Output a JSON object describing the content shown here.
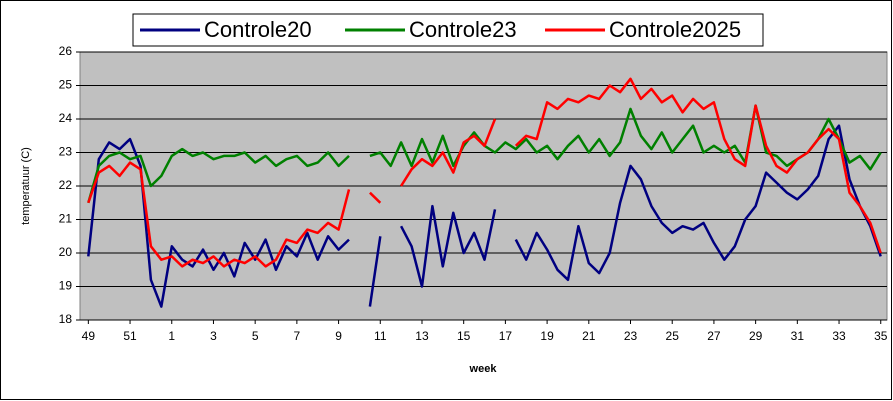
{
  "chart_data": {
    "type": "line",
    "x_label": "week",
    "y_label": "temperatuur (C)",
    "x": [
      0,
      0.5,
      1,
      1.5,
      2,
      2.5,
      3,
      3.5,
      4,
      4.5,
      5,
      5.5,
      6,
      6.5,
      7,
      7.5,
      8,
      8.5,
      9,
      9.5,
      10,
      10.5,
      11,
      11.5,
      12,
      12.5,
      13,
      13.5,
      14,
      14.5,
      15,
      15.5,
      16,
      16.5,
      17,
      17.5,
      18,
      18.5,
      19,
      19.5,
      20,
      20.5,
      21,
      21.5,
      22,
      22.5,
      23,
      23.5,
      24,
      24.5,
      25,
      25.5,
      26,
      26.5,
      27,
      27.5,
      28,
      28.5,
      29,
      29.5,
      30,
      30.5,
      31,
      31.5,
      32,
      32.5,
      33,
      33.5,
      34,
      34.5,
      35,
      35.5,
      36,
      36.5,
      37,
      37.5,
      38
    ],
    "series": [
      {
        "name": "Controle20",
        "color": "#000080",
        "values": [
          19.9,
          22.8,
          23.3,
          23.1,
          23.4,
          22.6,
          19.2,
          18.4,
          20.2,
          19.8,
          19.6,
          20.1,
          19.5,
          20.0,
          19.3,
          20.3,
          19.8,
          20.4,
          19.5,
          20.2,
          19.9,
          20.6,
          19.8,
          20.5,
          20.1,
          20.4,
          null,
          18.4,
          20.5,
          null,
          20.8,
          20.2,
          19.0,
          21.4,
          19.6,
          21.2,
          20.0,
          20.6,
          19.8,
          21.3,
          null,
          20.4,
          19.8,
          20.6,
          20.1,
          19.5,
          19.2,
          20.8,
          19.7,
          19.4,
          20.0,
          21.5,
          22.6,
          22.2,
          21.4,
          20.9,
          20.6,
          20.8,
          20.7,
          20.9,
          20.3,
          19.8,
          20.2,
          21.0,
          21.4,
          22.4,
          22.1,
          21.8,
          21.6,
          21.9,
          22.3,
          23.4,
          23.8,
          22.2,
          21.4,
          20.8,
          19.9
        ]
      },
      {
        "name": "Controle23",
        "color": "#008000",
        "values": [
          21.5,
          22.6,
          22.9,
          23.0,
          22.8,
          22.9,
          22.0,
          22.3,
          22.9,
          23.1,
          22.9,
          23.0,
          22.8,
          22.9,
          22.9,
          23.0,
          22.7,
          22.9,
          22.6,
          22.8,
          22.9,
          22.6,
          22.7,
          23.0,
          22.6,
          22.9,
          null,
          22.9,
          23.0,
          22.6,
          23.3,
          22.6,
          23.4,
          22.7,
          23.5,
          22.6,
          23.2,
          23.6,
          23.2,
          23.0,
          23.3,
          23.1,
          23.4,
          23.0,
          23.2,
          22.8,
          23.2,
          23.5,
          23.0,
          23.4,
          22.9,
          23.3,
          24.3,
          23.5,
          23.1,
          23.6,
          23.0,
          23.4,
          23.8,
          23.0,
          23.2,
          23.0,
          23.2,
          22.7,
          24.4,
          23.0,
          22.9,
          22.6,
          22.8,
          23.0,
          23.4,
          24.0,
          23.4,
          22.7,
          22.9,
          22.5,
          23.0
        ]
      },
      {
        "name": "Controle2025",
        "color": "#ff0000",
        "values": [
          21.5,
          22.4,
          22.6,
          22.3,
          22.7,
          22.5,
          20.2,
          19.8,
          19.9,
          19.6,
          19.8,
          19.7,
          19.9,
          19.6,
          19.8,
          19.7,
          19.9,
          19.6,
          19.8,
          20.4,
          20.3,
          20.7,
          20.6,
          20.9,
          20.7,
          21.9,
          null,
          21.8,
          21.5,
          null,
          22.0,
          22.5,
          22.8,
          22.6,
          23.0,
          22.4,
          23.3,
          23.5,
          23.2,
          24.0,
          null,
          23.2,
          23.5,
          23.4,
          24.5,
          24.3,
          24.6,
          24.5,
          24.7,
          24.6,
          25.0,
          24.8,
          25.2,
          24.6,
          24.9,
          24.5,
          24.7,
          24.2,
          24.6,
          24.3,
          24.5,
          23.4,
          22.8,
          22.6,
          24.4,
          23.2,
          22.6,
          22.4,
          22.8,
          23.0,
          23.4,
          23.7,
          23.4,
          21.8,
          21.4,
          20.9,
          20.0
        ]
      }
    ],
    "xlim": [
      -0.4,
      38.3
    ],
    "xticks": [
      {
        "value": 0,
        "label": "49"
      },
      {
        "value": 2,
        "label": "51"
      },
      {
        "value": 4,
        "label": "1"
      },
      {
        "value": 6,
        "label": "3"
      },
      {
        "value": 8,
        "label": "5"
      },
      {
        "value": 10,
        "label": "7"
      },
      {
        "value": 12,
        "label": "9"
      },
      {
        "value": 14,
        "label": "11"
      },
      {
        "value": 16,
        "label": "13"
      },
      {
        "value": 18,
        "label": "15"
      },
      {
        "value": 20,
        "label": "17"
      },
      {
        "value": 22,
        "label": "19"
      },
      {
        "value": 24,
        "label": "21"
      },
      {
        "value": 26,
        "label": "23"
      },
      {
        "value": 28,
        "label": "25"
      },
      {
        "value": 30,
        "label": "27"
      },
      {
        "value": 32,
        "label": "29"
      },
      {
        "value": 34,
        "label": "31"
      },
      {
        "value": 36,
        "label": "33"
      },
      {
        "value": 38,
        "label": "35"
      }
    ],
    "ylim": [
      18,
      26
    ],
    "yticks": [
      18,
      19,
      20,
      21,
      22,
      23,
      24,
      25,
      26
    ],
    "grid": true
  }
}
